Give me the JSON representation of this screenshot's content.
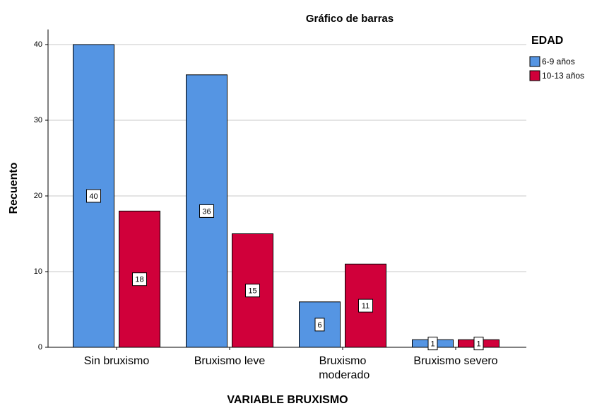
{
  "chart_data": {
    "type": "bar",
    "title": "Gráfico de barras",
    "x_label": "VARIABLE BRUXISMO",
    "y_label": "Recuento",
    "legend_title": "EDAD",
    "legend_position": "right",
    "categories": [
      "Sin bruxismo",
      "Bruxismo leve",
      "Bruxismo moderado",
      "Bruxismo severo"
    ],
    "series": [
      {
        "name": "6-9 años",
        "color": "#5595e3",
        "values": [
          40,
          36,
          6,
          1
        ]
      },
      {
        "name": "10-13 años",
        "color": "#d0003a",
        "values": [
          18,
          15,
          11,
          1
        ]
      }
    ],
    "ylim": [
      0,
      42
    ],
    "yticks": [
      0,
      10,
      20,
      30,
      40
    ],
    "grid": true,
    "data_labels": true
  }
}
